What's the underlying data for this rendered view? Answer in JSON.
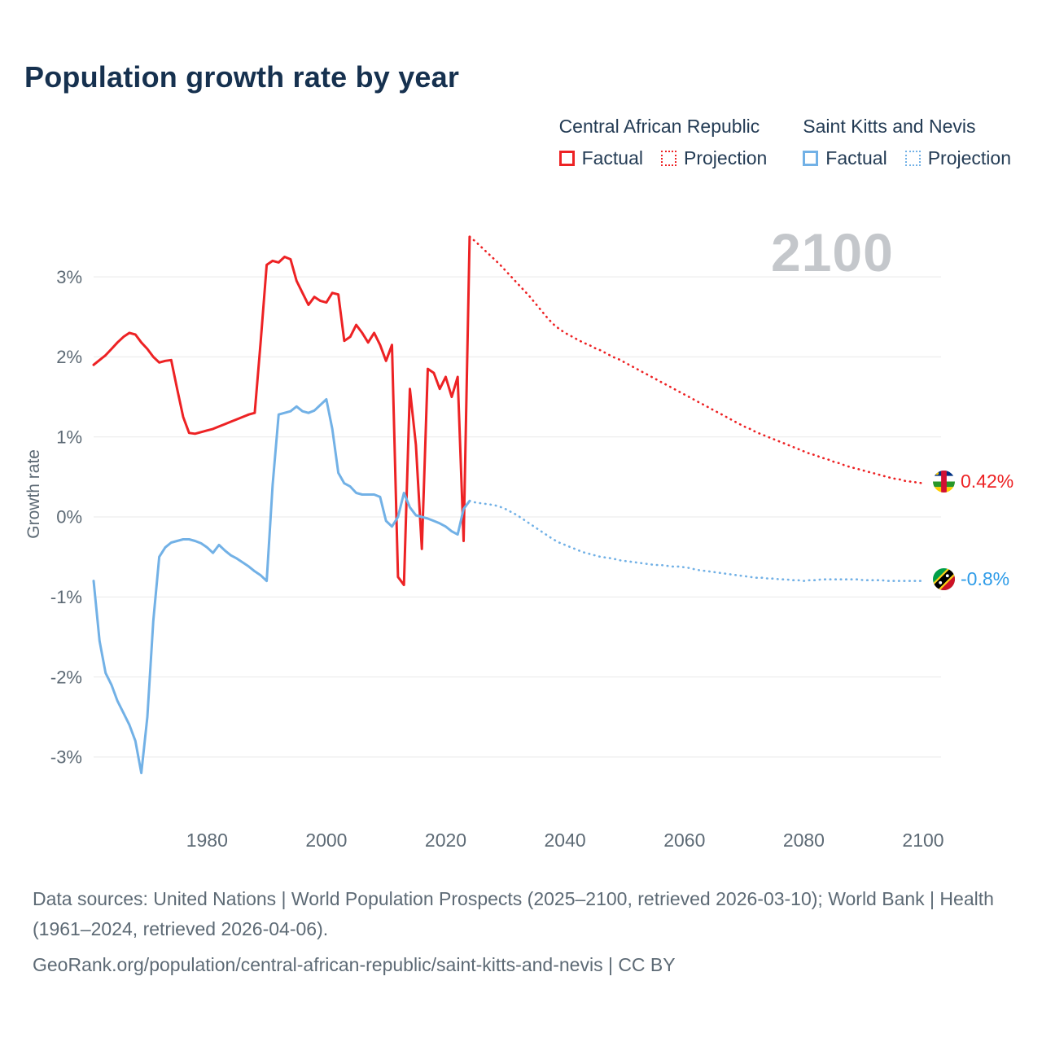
{
  "title": "Population growth rate by year",
  "watermark": "2100",
  "legend": {
    "group1_title": "Central African Republic",
    "group2_title": "Saint Kitts and Nevis",
    "factual_label": "Factual",
    "projection_label": "Projection"
  },
  "end_labels": {
    "car_value": "0.42%",
    "skn_value": "-0.8%"
  },
  "footer": {
    "sources": "Data sources: United Nations | World Population Prospects (2025–2100, retrieved 2026-03-10); World Bank | Health (1961–2024, retrieved 2026-04-06).",
    "attribution": "GeoRank.org/population/central-african-republic/saint-kitts-and-nevis | CC BY"
  },
  "colors": {
    "car": "#ed2224",
    "skn": "#72b1e6",
    "skn_label": "#2f9ce8",
    "title": "#16314f",
    "legend_text": "#243c55",
    "axis_text": "#5d6a75",
    "footer": "#5d6a75",
    "grid": "#e9e9e9",
    "watermark": "#c4c7cb"
  },
  "chart_data": {
    "type": "line",
    "title": "Population growth rate by year",
    "xlabel": "",
    "ylabel": "Growth rate",
    "xlim": [
      1961,
      2103
    ],
    "ylim": [
      -3.55,
      3.65
    ],
    "xticks": [
      1980,
      2000,
      2020,
      2040,
      2060,
      2080,
      2100
    ],
    "yticks": [
      3,
      2,
      1,
      0,
      -1,
      -2,
      -3
    ],
    "ytick_labels": [
      "3%",
      "2%",
      "1%",
      "0%",
      "-1%",
      "-2%",
      "-3%"
    ],
    "grid": "horizontal-only",
    "legend_position": "top-right",
    "series": [
      {
        "id": "car-factual-line",
        "name": "Central African Republic — Factual",
        "color_key": "car",
        "style": "solid",
        "x_start": 1961,
        "step": 1,
        "values": [
          1.9,
          1.96,
          2.02,
          2.1,
          2.18,
          2.25,
          2.3,
          2.28,
          2.18,
          2.1,
          2.0,
          1.93,
          1.95,
          1.96,
          1.6,
          1.25,
          1.05,
          1.04,
          1.06,
          1.08,
          1.1,
          1.13,
          1.16,
          1.19,
          1.22,
          1.25,
          1.28,
          1.3,
          2.2,
          3.15,
          3.2,
          3.18,
          3.25,
          3.22,
          2.95,
          2.8,
          2.65,
          2.75,
          2.7,
          2.68,
          2.8,
          2.78,
          2.2,
          2.25,
          2.4,
          2.3,
          2.18,
          2.3,
          2.15,
          1.95,
          2.15,
          -0.75,
          -0.85,
          1.6,
          0.9,
          -0.4,
          1.85,
          1.8,
          1.6,
          1.75,
          1.5,
          1.75,
          -0.3,
          3.5
        ]
      },
      {
        "id": "car-projection-line",
        "name": "Central African Republic — Projection",
        "color_key": "car",
        "style": "dotted",
        "x_start": 2024,
        "step": 1,
        "values": [
          3.5,
          3.44,
          3.37,
          3.3,
          3.23,
          3.16,
          3.08,
          3.0,
          2.92,
          2.84,
          2.76,
          2.67,
          2.58,
          2.49,
          2.41,
          2.35,
          2.3,
          2.26,
          2.22,
          2.18,
          2.15,
          2.11,
          2.08,
          2.04,
          2.0,
          1.97,
          1.93,
          1.89,
          1.85,
          1.81,
          1.77,
          1.73,
          1.69,
          1.65,
          1.61,
          1.57,
          1.53,
          1.49,
          1.45,
          1.41,
          1.37,
          1.33,
          1.29,
          1.25,
          1.21,
          1.17,
          1.13,
          1.1,
          1.06,
          1.03,
          1.0,
          0.97,
          0.94,
          0.91,
          0.88,
          0.85,
          0.82,
          0.79,
          0.77,
          0.74,
          0.72,
          0.69,
          0.67,
          0.64,
          0.62,
          0.6,
          0.58,
          0.56,
          0.54,
          0.52,
          0.5,
          0.48,
          0.47,
          0.45,
          0.44,
          0.43,
          0.42
        ]
      },
      {
        "id": "skn-factual-line",
        "name": "Saint Kitts and Nevis — Factual",
        "color_key": "skn",
        "style": "solid",
        "x_start": 1961,
        "step": 1,
        "values": [
          -0.8,
          -1.55,
          -1.95,
          -2.1,
          -2.3,
          -2.45,
          -2.6,
          -2.8,
          -3.2,
          -2.5,
          -1.3,
          -0.5,
          -0.38,
          -0.32,
          -0.3,
          -0.28,
          -0.28,
          -0.3,
          -0.33,
          -0.38,
          -0.45,
          -0.35,
          -0.42,
          -0.48,
          -0.52,
          -0.57,
          -0.62,
          -0.68,
          -0.73,
          -0.8,
          0.4,
          1.28,
          1.3,
          1.32,
          1.38,
          1.32,
          1.3,
          1.33,
          1.4,
          1.47,
          1.1,
          0.55,
          0.42,
          0.38,
          0.3,
          0.28,
          0.28,
          0.28,
          0.25,
          -0.05,
          -0.12,
          0.0,
          0.3,
          0.12,
          0.02,
          0.0,
          -0.02,
          -0.05,
          -0.08,
          -0.12,
          -0.18,
          -0.22,
          0.1,
          0.2
        ]
      },
      {
        "id": "skn-projection-line",
        "name": "Saint Kitts and Nevis — Projection",
        "color_key": "skn",
        "style": "dotted",
        "x_start": 2024,
        "step": 1,
        "values": [
          0.2,
          0.18,
          0.17,
          0.16,
          0.15,
          0.13,
          0.1,
          0.06,
          0.02,
          -0.03,
          -0.08,
          -0.13,
          -0.18,
          -0.23,
          -0.28,
          -0.32,
          -0.35,
          -0.38,
          -0.41,
          -0.44,
          -0.46,
          -0.48,
          -0.5,
          -0.51,
          -0.52,
          -0.54,
          -0.55,
          -0.56,
          -0.57,
          -0.58,
          -0.59,
          -0.6,
          -0.6,
          -0.61,
          -0.62,
          -0.62,
          -0.63,
          -0.64,
          -0.66,
          -0.67,
          -0.68,
          -0.69,
          -0.7,
          -0.71,
          -0.72,
          -0.73,
          -0.74,
          -0.75,
          -0.76,
          -0.76,
          -0.77,
          -0.77,
          -0.78,
          -0.78,
          -0.79,
          -0.79,
          -0.8,
          -0.79,
          -0.79,
          -0.78,
          -0.78,
          -0.78,
          -0.78,
          -0.78,
          -0.78,
          -0.78,
          -0.79,
          -0.79,
          -0.79,
          -0.79,
          -0.8,
          -0.8,
          -0.8,
          -0.8,
          -0.8,
          -0.8,
          -0.8
        ]
      }
    ],
    "end_annotations": [
      {
        "series": "car-projection-line",
        "x": 2100,
        "y": 0.42,
        "label": "0.42%"
      },
      {
        "series": "skn-projection-line",
        "x": 2100,
        "y": -0.8,
        "label": "-0.8%"
      }
    ]
  }
}
